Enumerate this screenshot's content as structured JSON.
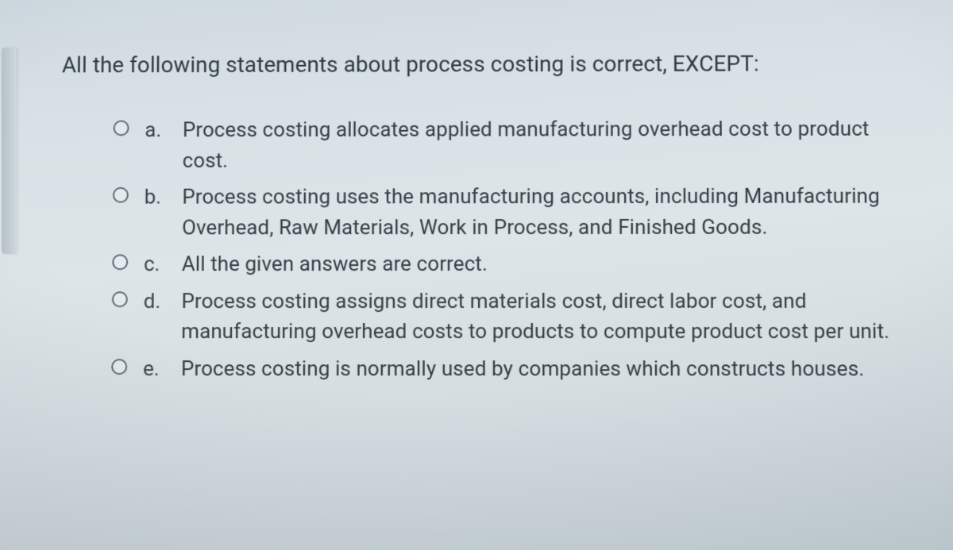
{
  "question": {
    "prompt": "All the following statements about process costing is correct, EXCEPT:",
    "options": [
      {
        "letter": "a.",
        "text": "Process costing allocates applied manufacturing overhead cost to product cost."
      },
      {
        "letter": "b.",
        "text": "Process costing uses the manufacturing accounts, including Manufacturing Overhead, Raw Materials, Work in Process, and Finished Goods."
      },
      {
        "letter": "c.",
        "text": "All the given answers are correct."
      },
      {
        "letter": "d.",
        "text": "Process costing assigns direct materials cost, direct labor cost, and manufacturing overhead costs to products to compute product cost per unit."
      },
      {
        "letter": "e.",
        "text": "Process costing is normally used by companies which constructs houses."
      }
    ]
  },
  "style": {
    "text_color": "#333e46",
    "prompt_color": "#2f3a42",
    "radio_border": "#5c6a74",
    "question_fontsize": 28,
    "option_fontsize": 26
  }
}
